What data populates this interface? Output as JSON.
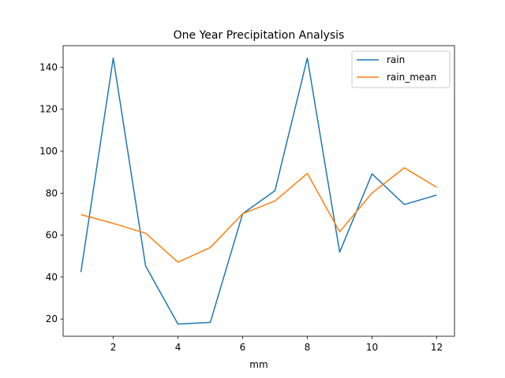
{
  "chart_data": {
    "type": "line",
    "title": "One Year Precipitation Analysis",
    "xlabel": "mm",
    "ylabel": "",
    "x": [
      1,
      2,
      3,
      4,
      5,
      6,
      7,
      8,
      9,
      10,
      11,
      12
    ],
    "xlim": [
      0.45,
      12.55
    ],
    "ylim": [
      11.8,
      150.3
    ],
    "xticks": [
      2,
      4,
      6,
      8,
      10,
      12
    ],
    "yticks": [
      20,
      40,
      60,
      80,
      100,
      120,
      140
    ],
    "grid": false,
    "legend_position": "top-right",
    "series": [
      {
        "name": "rain",
        "color": "#1f77b4",
        "values": [
          42.4,
          144.4,
          45.3,
          17.6,
          18.4,
          70.2,
          81.2,
          144.4,
          51.9,
          89.2,
          74.6,
          79.1
        ]
      },
      {
        "name": "rain_mean",
        "color": "#ff7f0e",
        "values": [
          69.8,
          65.6,
          60.9,
          47.1,
          54.1,
          70.2,
          76.3,
          89.4,
          61.6,
          80.1,
          92.1,
          82.8
        ]
      }
    ]
  }
}
